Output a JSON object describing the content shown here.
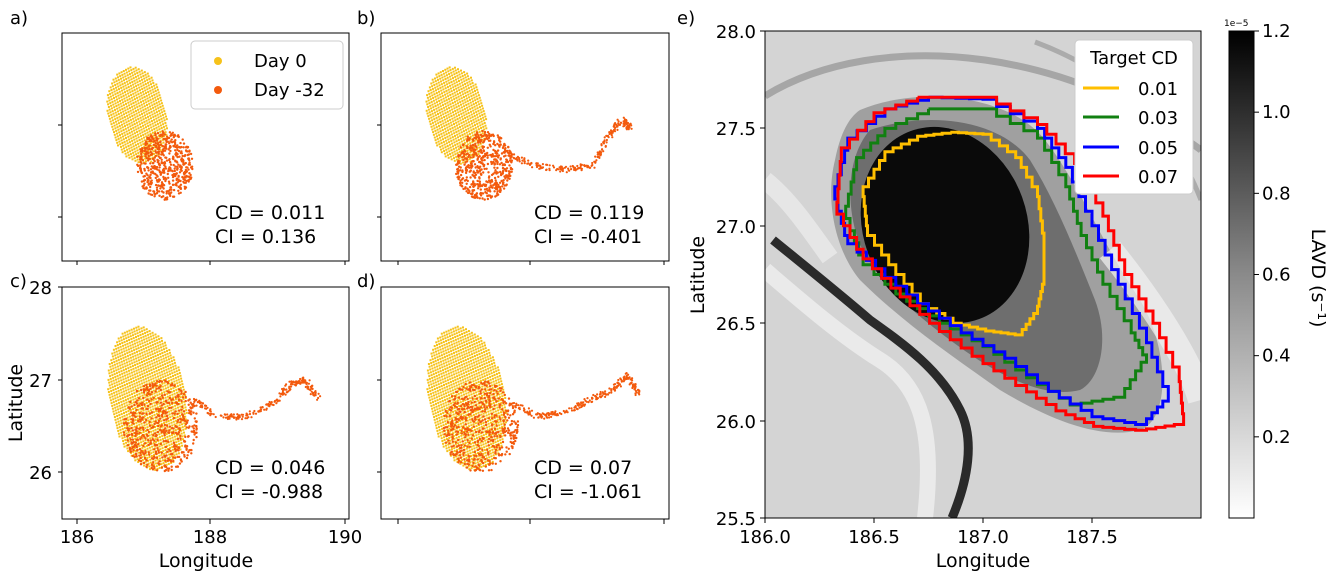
{
  "figure": {
    "panel_labels": [
      "a)",
      "b)",
      "c)",
      "d)",
      "e)"
    ]
  },
  "colors": {
    "day0": "#f6c21a",
    "day32": "#f35a0d",
    "cd_001": "#ffbf00",
    "cd_003": "#118011",
    "cd_005": "#0000ff",
    "cd_007": "#ff0000"
  },
  "chart_data": [
    {
      "panel": "a)",
      "type": "scatter",
      "xlim": [
        185.8,
        190.0
      ],
      "ylim": [
        25.5,
        28.0
      ],
      "legend": {
        "placement": "top-right",
        "entries": [
          "Day 0",
          "Day -32"
        ]
      },
      "series": [
        {
          "name": "Day 0",
          "shape": {
            "center": [
              186.9,
              27.1
            ],
            "semi_axes": [
              0.42,
              0.55
            ],
            "tilt_deg": 22
          }
        },
        {
          "name": "Day -32",
          "core": {
            "center": [
              187.3,
              26.55
            ],
            "radius": 0.42
          }
        }
      ],
      "annotation": {
        "cd": "CD = 0.011",
        "ci": "CI = 0.136"
      }
    },
    {
      "panel": "b)",
      "type": "scatter",
      "xlim": [
        185.8,
        190.0
      ],
      "ylim": [
        25.5,
        28.0
      ],
      "series": [
        {
          "name": "Day 0",
          "shape": {
            "center": [
              186.9,
              27.1
            ],
            "semi_axes": [
              0.42,
              0.55
            ],
            "tilt_deg": 22
          }
        },
        {
          "name": "Day -32",
          "core": {
            "center": [
              187.3,
              26.55
            ],
            "radius": 0.42
          },
          "filament": [
            [
              187.6,
              26.7
            ],
            [
              188.0,
              26.55
            ],
            [
              188.5,
              26.5
            ],
            [
              188.9,
              26.55
            ],
            [
              189.1,
              26.85
            ],
            [
              189.3,
              27.05
            ],
            [
              189.45,
              26.95
            ]
          ]
        }
      ],
      "annotation": {
        "cd": "CD = 0.119",
        "ci": "CI = -0.401"
      }
    },
    {
      "panel": "c)",
      "type": "scatter",
      "xlabel": "Longitude",
      "ylabel": "Latitude",
      "xlim": [
        185.8,
        190.0
      ],
      "ylim": [
        25.5,
        28.0
      ],
      "xticks": [
        "186",
        "188",
        "190"
      ],
      "yticks": [
        "26",
        "27",
        "28"
      ],
      "series": [
        {
          "name": "Day 0",
          "shape": {
            "center": [
              187.05,
              26.8
            ],
            "semi_axes": [
              0.55,
              0.8
            ],
            "tilt_deg": 18
          }
        },
        {
          "name": "Day -32",
          "core": {
            "center": [
              187.25,
              26.5
            ],
            "radius": 0.55
          },
          "filament": [
            [
              187.7,
              26.8
            ],
            [
              188.1,
              26.6
            ],
            [
              188.5,
              26.6
            ],
            [
              188.9,
              26.75
            ],
            [
              189.15,
              26.95
            ],
            [
              189.35,
              27.0
            ],
            [
              189.55,
              26.8
            ]
          ]
        }
      ],
      "annotation": {
        "cd": "CD = 0.046",
        "ci": "CI = -0.988"
      }
    },
    {
      "panel": "d)",
      "type": "scatter",
      "xlim": [
        185.8,
        190.0
      ],
      "ylim": [
        25.5,
        28.0
      ],
      "series": [
        {
          "name": "Day 0",
          "shape": {
            "center": [
              187.05,
              26.8
            ],
            "semi_axes": [
              0.55,
              0.8
            ],
            "tilt_deg": 18
          }
        },
        {
          "name": "Day -32",
          "core": {
            "center": [
              187.25,
              26.5
            ],
            "radius": 0.55
          },
          "filament": [
            [
              187.7,
              26.75
            ],
            [
              188.1,
              26.6
            ],
            [
              188.5,
              26.65
            ],
            [
              188.9,
              26.8
            ],
            [
              189.2,
              26.9
            ],
            [
              189.4,
              27.05
            ],
            [
              189.55,
              26.85
            ]
          ]
        }
      ],
      "annotation": {
        "cd": "CD = 0.07",
        "ci": "CI = -1.061"
      }
    },
    {
      "panel": "e)",
      "type": "heatmap",
      "xlabel": "Longitude",
      "ylabel": "Latitude",
      "xlim": [
        186.0,
        188.0
      ],
      "ylim": [
        25.5,
        28.0
      ],
      "xticks": [
        "186.0",
        "186.5",
        "187.0",
        "187.5"
      ],
      "yticks": [
        "25.5",
        "26.0",
        "26.5",
        "27.0",
        "27.5",
        "28.0"
      ],
      "colorbar": {
        "label": "LAVD (s⁻¹)",
        "multiplier": "1e−5",
        "range": [
          0.0,
          1.2
        ],
        "ticks": [
          "0.2",
          "0.4",
          "0.6",
          "0.8",
          "1.0",
          "1.2"
        ],
        "colormap": "gray_r"
      },
      "legend": {
        "title": "Target CD",
        "placement": "top-right",
        "entries": [
          "0.01",
          "0.03",
          "0.05",
          "0.07"
        ]
      },
      "contours": [
        {
          "name": "0.01",
          "points": [
            [
              186.85,
              27.48
            ],
            [
              187.0,
              27.47
            ],
            [
              187.15,
              27.35
            ],
            [
              187.25,
              27.15
            ],
            [
              187.28,
              26.9
            ],
            [
              187.28,
              26.7
            ],
            [
              187.25,
              26.55
            ],
            [
              187.18,
              26.44
            ],
            [
              187.05,
              26.46
            ],
            [
              186.9,
              26.5
            ],
            [
              186.75,
              26.6
            ],
            [
              186.6,
              26.8
            ],
            [
              186.47,
              27.0
            ],
            [
              186.45,
              27.2
            ],
            [
              186.55,
              27.38
            ],
            [
              186.7,
              27.46
            ],
            [
              186.85,
              27.48
            ]
          ]
        },
        {
          "name": "0.03",
          "points": [
            [
              186.75,
              27.6
            ],
            [
              187.0,
              27.6
            ],
            [
              187.25,
              27.45
            ],
            [
              187.38,
              27.2
            ],
            [
              187.45,
              26.95
            ],
            [
              187.55,
              26.7
            ],
            [
              187.68,
              26.45
            ],
            [
              187.75,
              26.3
            ],
            [
              187.65,
              26.12
            ],
            [
              187.45,
              26.08
            ],
            [
              187.25,
              26.22
            ],
            [
              187.05,
              26.38
            ],
            [
              186.85,
              26.5
            ],
            [
              186.65,
              26.65
            ],
            [
              186.45,
              26.85
            ],
            [
              186.37,
              27.1
            ],
            [
              186.42,
              27.35
            ],
            [
              186.55,
              27.5
            ],
            [
              186.75,
              27.6
            ]
          ]
        },
        {
          "name": "0.05",
          "points": [
            [
              186.75,
              27.66
            ],
            [
              187.0,
              27.65
            ],
            [
              187.25,
              27.5
            ],
            [
              187.38,
              27.3
            ],
            [
              187.5,
              27.0
            ],
            [
              187.62,
              26.7
            ],
            [
              187.75,
              26.4
            ],
            [
              187.85,
              26.1
            ],
            [
              187.75,
              25.98
            ],
            [
              187.55,
              26.02
            ],
            [
              187.35,
              26.15
            ],
            [
              187.15,
              26.32
            ],
            [
              186.95,
              26.45
            ],
            [
              186.75,
              26.6
            ],
            [
              186.55,
              26.78
            ],
            [
              186.38,
              26.95
            ],
            [
              186.32,
              27.2
            ],
            [
              186.38,
              27.45
            ],
            [
              186.55,
              27.6
            ],
            [
              186.75,
              27.66
            ]
          ]
        },
        {
          "name": "0.07",
          "points": [
            [
              186.7,
              27.66
            ],
            [
              187.0,
              27.66
            ],
            [
              187.25,
              27.52
            ],
            [
              187.42,
              27.32
            ],
            [
              187.55,
              27.05
            ],
            [
              187.65,
              26.75
            ],
            [
              187.78,
              26.5
            ],
            [
              187.9,
              26.2
            ],
            [
              187.92,
              25.98
            ],
            [
              187.75,
              25.95
            ],
            [
              187.55,
              25.97
            ],
            [
              187.38,
              26.05
            ],
            [
              187.2,
              26.18
            ],
            [
              187.0,
              26.33
            ],
            [
              186.8,
              26.5
            ],
            [
              186.62,
              26.68
            ],
            [
              186.45,
              26.88
            ],
            [
              186.33,
              27.12
            ],
            [
              186.35,
              27.4
            ],
            [
              186.5,
              27.58
            ],
            [
              186.7,
              27.66
            ]
          ]
        }
      ]
    }
  ]
}
